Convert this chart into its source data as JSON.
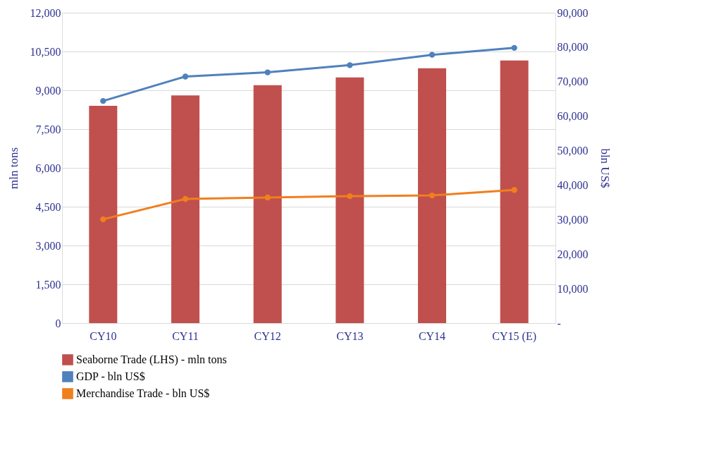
{
  "chart_data": {
    "type": "bar",
    "categories": [
      "CY10",
      "CY11",
      "CY12",
      "CY13",
      "CY14",
      "CY15 (E)"
    ],
    "ylabel": "mln tons",
    "y2label": "bln US$",
    "ylim": [
      0,
      12000
    ],
    "yticks": [
      0,
      {
        "value": 1500,
        "label": "1,500"
      },
      {
        "value": 3000,
        "label": "3,000"
      },
      {
        "value": 4500,
        "label": "4,500"
      },
      {
        "value": 6000,
        "label": "6,000"
      },
      {
        "value": 7500,
        "label": "7,500"
      },
      {
        "value": 9000,
        "label": "9,000"
      },
      {
        "value": 10500,
        "label": "10,500"
      },
      {
        "value": 12000,
        "label": "12,000"
      }
    ],
    "y2lim": [
      0,
      90000
    ],
    "y2ticks": [
      {
        "value": 0,
        "label": "-"
      },
      {
        "value": 10000,
        "label": "10,000"
      },
      {
        "value": 20000,
        "label": "20,000"
      },
      {
        "value": 30000,
        "label": "30,000"
      },
      {
        "value": 40000,
        "label": "40,000"
      },
      {
        "value": 50000,
        "label": "50,000"
      },
      {
        "value": 60000,
        "label": "60,000"
      },
      {
        "value": 70000,
        "label": "70,000"
      },
      {
        "value": 80000,
        "label": "80,000"
      },
      {
        "value": 90000,
        "label": "90,000"
      }
    ],
    "grid": "y",
    "legend": "bottom",
    "marker": "circle",
    "line_style": "solid",
    "series": [
      {
        "name": "Seaborne Trade (LHS) - mln tons",
        "color": "#c0504d",
        "values": [
          8400,
          8800,
          9200,
          9500,
          9850,
          10150
        ]
      },
      {
        "name": "GDP - bln US$",
        "type": "line",
        "axis": "y2",
        "color": "#4f81bd",
        "values": [
          64400,
          71500,
          72700,
          74800,
          77800,
          79800
        ]
      },
      {
        "name": "Merchandise Trade - bln US$",
        "type": "line",
        "axis": "y2",
        "color": "#f07f1e",
        "values": [
          30100,
          36000,
          36400,
          36800,
          37000,
          38600
        ]
      }
    ]
  }
}
